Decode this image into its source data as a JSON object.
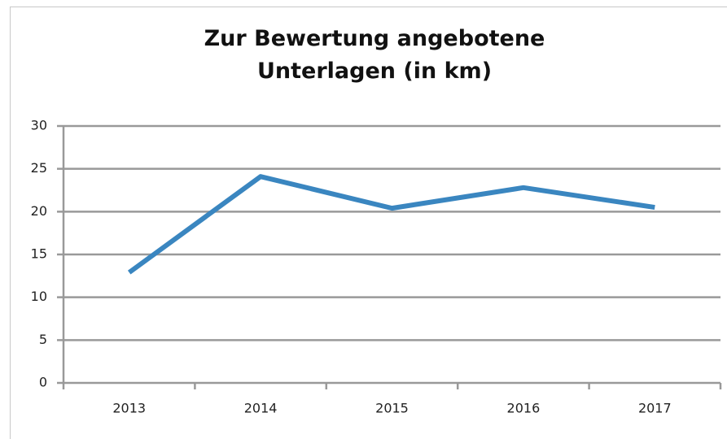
{
  "chart_data": {
    "type": "line",
    "title": "Zur Bewertung angebotene Unterlagen (in km)",
    "categories": [
      "2013",
      "2014",
      "2015",
      "2016",
      "2017"
    ],
    "series": [
      {
        "name": "Unterlagen",
        "color": "#3a86c0",
        "values": [
          12.9,
          24.1,
          20.4,
          22.8,
          20.5
        ]
      }
    ],
    "ylim": [
      0,
      30
    ],
    "yticks": [
      0,
      5,
      10,
      15,
      20,
      25,
      30
    ],
    "grid": true
  }
}
